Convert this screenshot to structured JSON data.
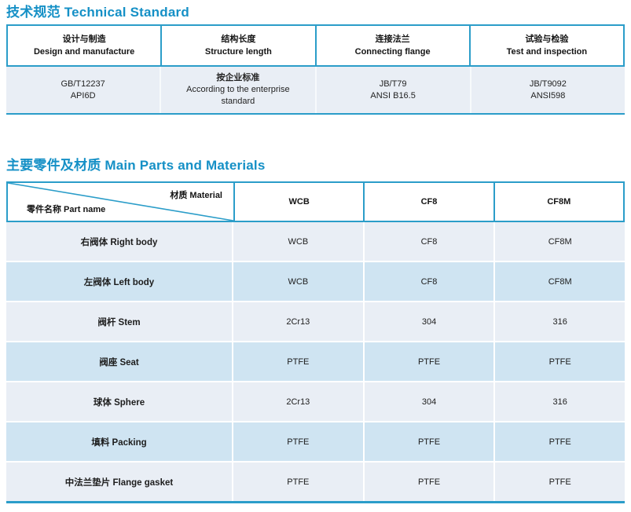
{
  "colors": {
    "accent_title": "#1590c6",
    "table_border": "#2b9dc9",
    "row_light": "#e9eef5",
    "row_alt": "#cfe4f2"
  },
  "technical_standard": {
    "title_zh": "技术规范",
    "title_en": "Technical Standard",
    "columns": [
      {
        "zh": "设计与制造",
        "en": "Design and manufacture",
        "value_line1": "GB/T12237",
        "value_line2": "API6D"
      },
      {
        "zh": "结构长度",
        "en": "Structure length",
        "value_line1": "按企业标准",
        "value_line2": "According to the enterprise standard"
      },
      {
        "zh": "连接法兰",
        "en": "Connecting flange",
        "value_line1": "JB/T79",
        "value_line2": "ANSI B16.5"
      },
      {
        "zh": "试验与检验",
        "en": "Test and inspection",
        "value_line1": "JB/T9092",
        "value_line2": "ANSI598"
      }
    ]
  },
  "main_parts": {
    "title_zh": "主要零件及材质",
    "title_en": "Main Parts and Materials",
    "corner": {
      "top_right": "材质 Material",
      "bottom_left": "零件名称 Part name"
    },
    "material_columns": [
      "WCB",
      "CF8",
      "CF8M"
    ],
    "rows": [
      {
        "part": "右阀体 Right body",
        "values": [
          "WCB",
          "CF8",
          "CF8M"
        ]
      },
      {
        "part": "左阀体 Left body",
        "values": [
          "WCB",
          "CF8",
          "CF8M"
        ]
      },
      {
        "part": "阀杆 Stem",
        "values": [
          "2Cr13",
          "304",
          "316"
        ]
      },
      {
        "part": "阀座 Seat",
        "values": [
          "PTFE",
          "PTFE",
          "PTFE"
        ]
      },
      {
        "part": "球体 Sphere",
        "values": [
          "2Cr13",
          "304",
          "316"
        ]
      },
      {
        "part": "填料 Packing",
        "values": [
          "PTFE",
          "PTFE",
          "PTFE"
        ]
      },
      {
        "part": "中法兰垫片 Flange gasket",
        "values": [
          "PTFE",
          "PTFE",
          "PTFE"
        ]
      }
    ]
  }
}
